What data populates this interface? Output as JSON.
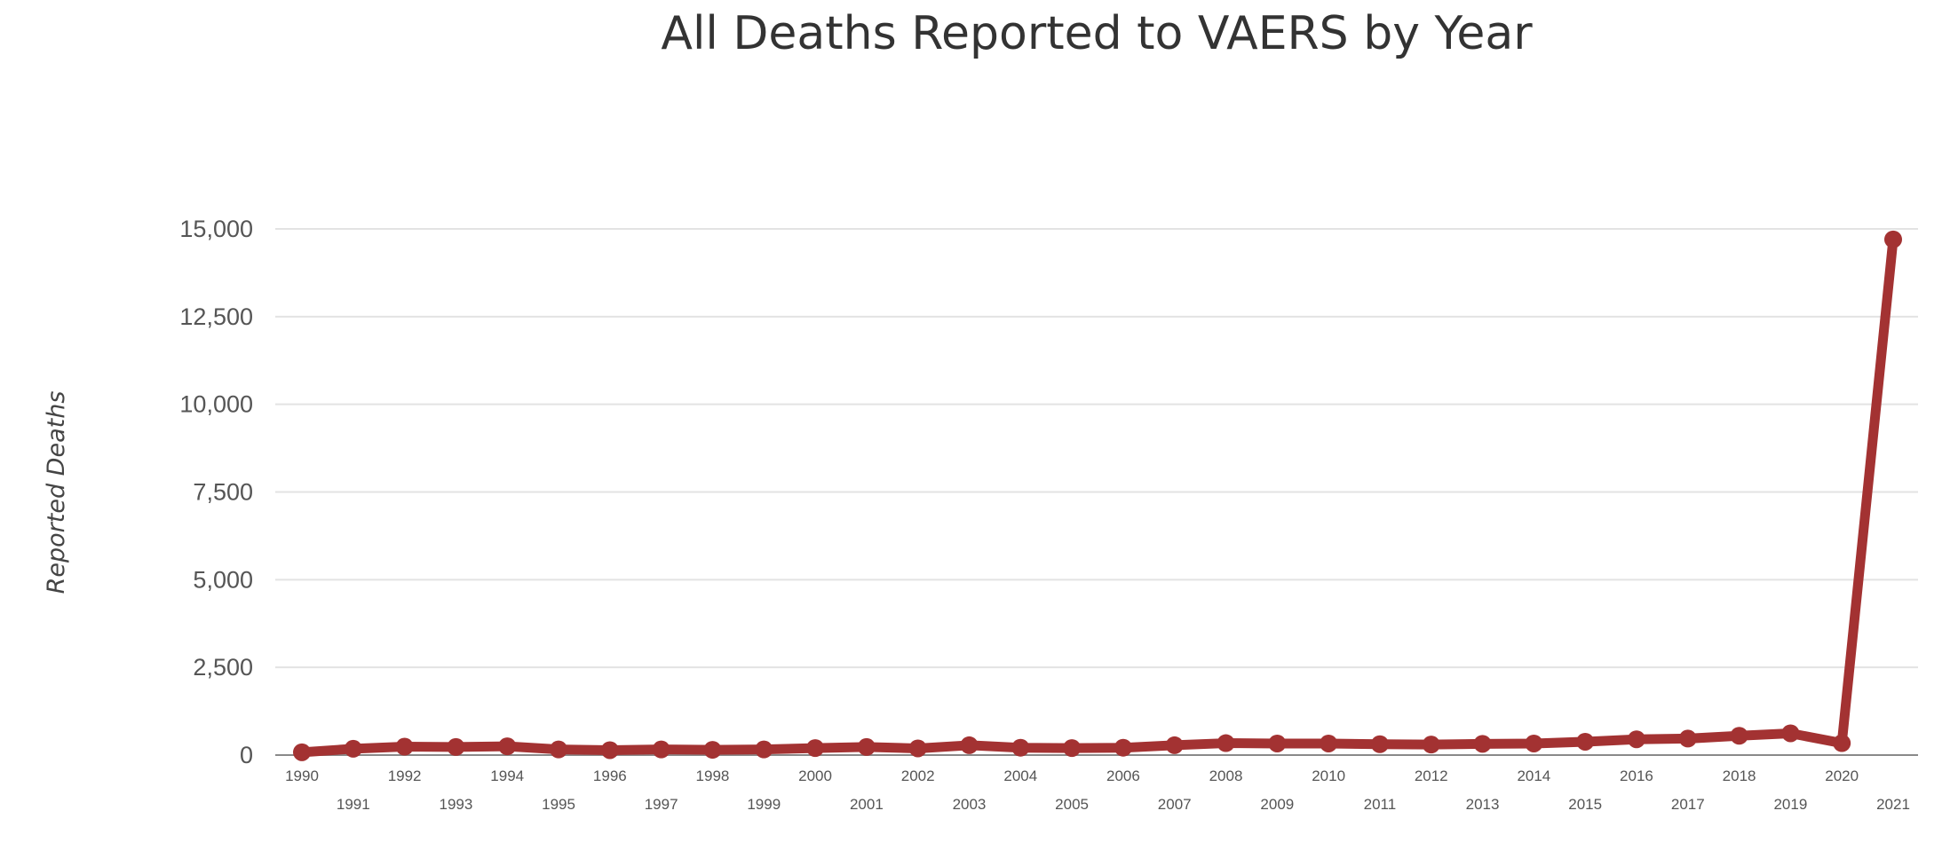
{
  "chart_data": {
    "type": "line",
    "title": "All Deaths Reported to VAERS by Year",
    "xlabel": "",
    "ylabel": "Reported Deaths",
    "x": [
      "1990",
      "1991",
      "1992",
      "1993",
      "1994",
      "1995",
      "1996",
      "1997",
      "1998",
      "1999",
      "2000",
      "2001",
      "2002",
      "2003",
      "2004",
      "2005",
      "2006",
      "2007",
      "2008",
      "2009",
      "2010",
      "2011",
      "2012",
      "2013",
      "2014",
      "2015",
      "2016",
      "2017",
      "2018",
      "2019",
      "2020",
      "2021"
    ],
    "series": [
      {
        "values": [
          80,
          180,
          240,
          230,
          250,
          160,
          140,
          160,
          150,
          160,
          200,
          230,
          190,
          280,
          210,
          200,
          210,
          280,
          340,
          330,
          330,
          310,
          300,
          320,
          330,
          380,
          450,
          470,
          550,
          620,
          340,
          14700
        ],
        "color": "#a33232"
      }
    ],
    "ylim": [
      0,
      15000
    ],
    "yticks": [
      0,
      2500,
      5000,
      7500,
      10000,
      12500,
      15000
    ],
    "ytick_labels": [
      "0",
      "2,500",
      "5,000",
      "7,500",
      "10,000",
      "12,500",
      "15,000"
    ],
    "grid": true,
    "legend": "none"
  }
}
